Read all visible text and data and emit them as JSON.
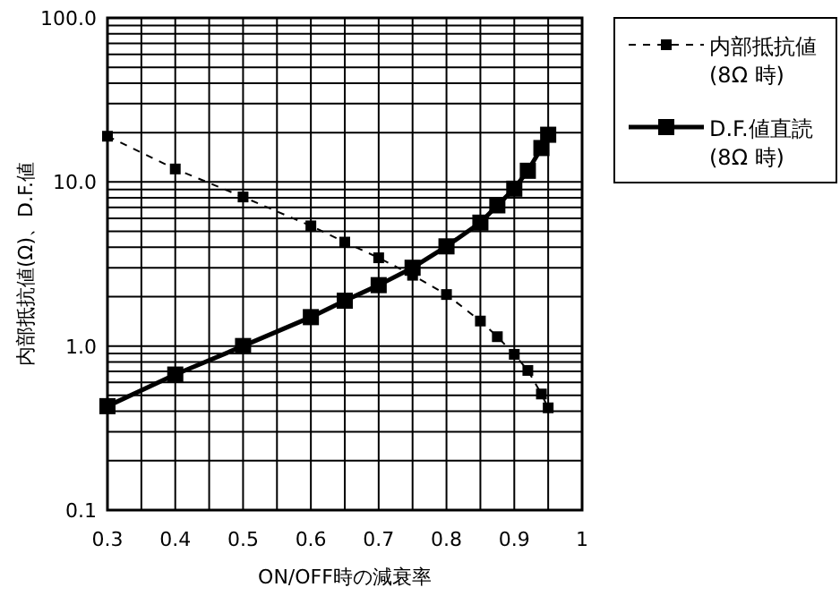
{
  "chart_data": {
    "type": "line",
    "xlabel": "ON/OFF時の減衰率",
    "ylabel": "内部抵抗値(Ω)、D.F.値",
    "log": "y",
    "grid": true,
    "legend": "right",
    "marker": "square",
    "xlim": [
      0.3,
      1
    ],
    "xticks": [
      {
        "value": 0.3,
        "label": "0.3"
      },
      {
        "value": 0.35,
        "label": null
      },
      {
        "value": 0.4,
        "label": "0.4"
      },
      {
        "value": 0.45,
        "label": null
      },
      {
        "value": 0.5,
        "label": "0.5"
      },
      {
        "value": 0.55,
        "label": null
      },
      {
        "value": 0.6,
        "label": "0.6"
      },
      {
        "value": 0.65,
        "label": null
      },
      {
        "value": 0.7,
        "label": "0.7"
      },
      {
        "value": 0.75,
        "label": null
      },
      {
        "value": 0.8,
        "label": "0.8"
      },
      {
        "value": 0.85,
        "label": null
      },
      {
        "value": 0.9,
        "label": "0.9"
      },
      {
        "value": 0.95,
        "label": null
      },
      {
        "value": 1,
        "label": "1"
      }
    ],
    "ylim": [
      0.1,
      100
    ],
    "yticks": [
      {
        "value": 0.1,
        "label": "0.1"
      },
      {
        "value": 0.2,
        "label": null
      },
      {
        "value": 0.3,
        "label": null
      },
      {
        "value": 0.4,
        "label": null
      },
      {
        "value": 0.5,
        "label": null
      },
      {
        "value": 0.6,
        "label": null
      },
      {
        "value": 0.7,
        "label": null
      },
      {
        "value": 0.8,
        "label": null
      },
      {
        "value": 0.9,
        "label": null
      },
      {
        "value": 1,
        "label": "1.0"
      },
      {
        "value": 2,
        "label": null
      },
      {
        "value": 3,
        "label": null
      },
      {
        "value": 4,
        "label": null
      },
      {
        "value": 5,
        "label": null
      },
      {
        "value": 6,
        "label": null
      },
      {
        "value": 7,
        "label": null
      },
      {
        "value": 8,
        "label": null
      },
      {
        "value": 9,
        "label": null
      },
      {
        "value": 10,
        "label": "10.0"
      },
      {
        "value": 20,
        "label": null
      },
      {
        "value": 30,
        "label": null
      },
      {
        "value": 40,
        "label": null
      },
      {
        "value": 50,
        "label": null
      },
      {
        "value": 60,
        "label": null
      },
      {
        "value": 70,
        "label": null
      },
      {
        "value": 80,
        "label": null
      },
      {
        "value": 90,
        "label": null
      },
      {
        "value": 100,
        "label": "100.0"
      }
    ],
    "series": [
      {
        "name": "内部抵抗値\n(8Ω 時)",
        "color": "#000000",
        "line_style": "dashed",
        "x": [
          0.3,
          0.4,
          0.5,
          0.6,
          0.65,
          0.7,
          0.75,
          0.8,
          0.85,
          0.875,
          0.9,
          0.92,
          0.94,
          0.95
        ],
        "values": [
          19,
          12,
          8.1,
          5.4,
          4.3,
          3.45,
          2.7,
          2.06,
          1.42,
          1.14,
          0.89,
          0.71,
          0.51,
          0.42
        ]
      },
      {
        "name": "D.F.値直読\n(8Ω 時)",
        "color": "#000000",
        "line_style": "solid",
        "x": [
          0.3,
          0.4,
          0.5,
          0.6,
          0.65,
          0.7,
          0.75,
          0.8,
          0.85,
          0.875,
          0.9,
          0.92,
          0.94,
          0.95
        ],
        "values": [
          0.43,
          0.67,
          1.0,
          1.5,
          1.89,
          2.35,
          3.0,
          4.05,
          5.65,
          7.2,
          9.1,
          11.7,
          16.1,
          19.4
        ]
      }
    ]
  }
}
